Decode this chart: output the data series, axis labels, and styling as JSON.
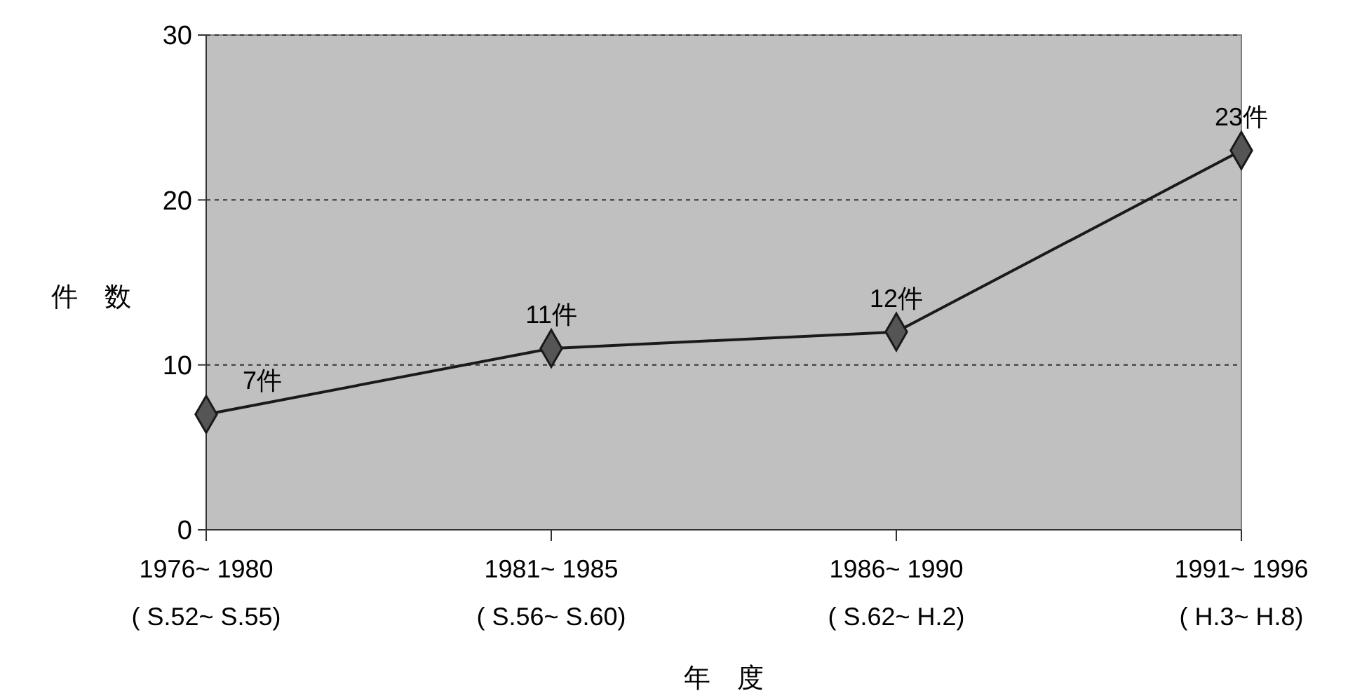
{
  "chart_data": {
    "type": "line",
    "xlabel": "年　度",
    "ylabel": "件　数",
    "categories": [
      "1976~ 1980\n( S.52~ S.55)",
      "1981~ 1985\n( S.56~ S.60)",
      "1986~ 1990\n( S.62~ H.2)",
      "1991~ 1996\n( H.3~ H.8)"
    ],
    "series": [
      {
        "color": "#1a1a1a",
        "values": [
          7,
          11,
          12,
          23
        ],
        "value_labels": [
          "7件",
          "11件",
          "12件",
          "23件"
        ]
      }
    ],
    "ylim": [
      0,
      30
    ],
    "yticks": [
      0,
      10,
      20,
      30
    ],
    "grid": "y",
    "marker": "diamond",
    "line_style": "solid"
  }
}
